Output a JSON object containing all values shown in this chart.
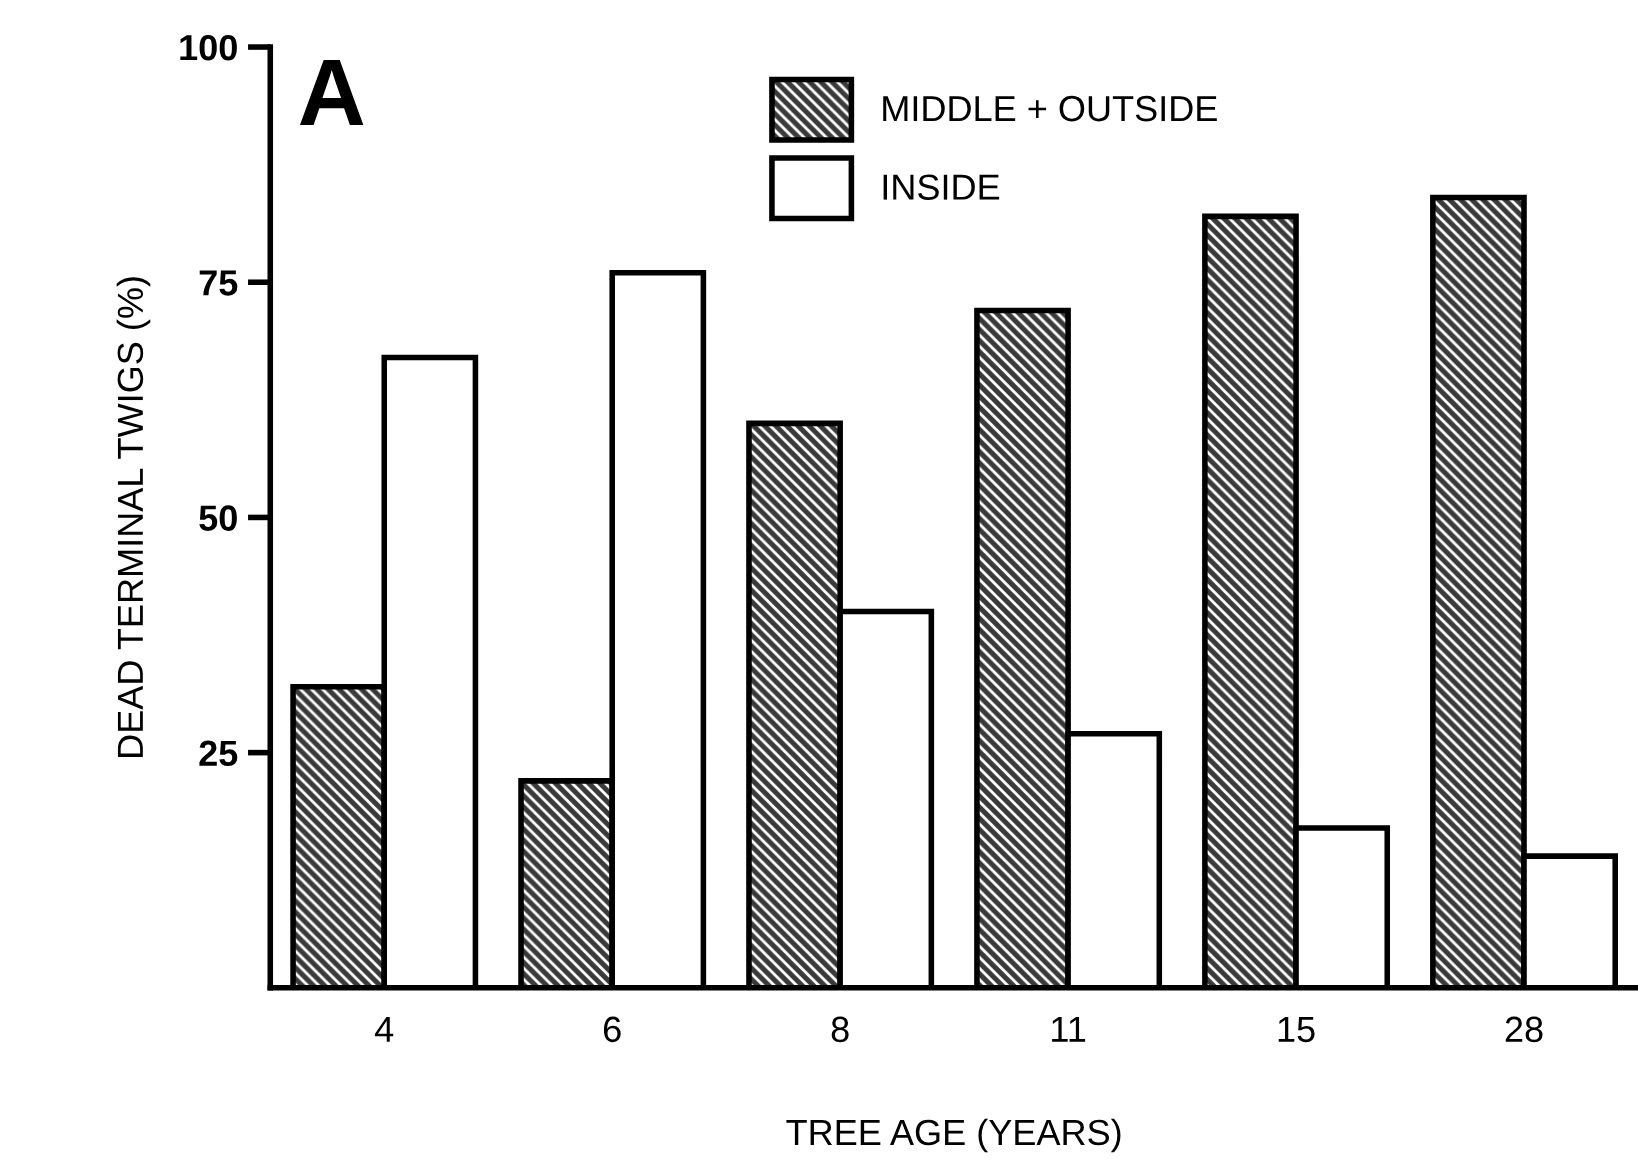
{
  "chart_data": {
    "type": "bar",
    "title": "A",
    "xlabel": "TREE AGE (YEARS)",
    "ylabel": "DEAD TERMINAL TWIGS (%)",
    "categories": [
      "4",
      "6",
      "8",
      "11",
      "15",
      "28"
    ],
    "series": [
      {
        "name": "MIDDLE + OUTSIDE",
        "color": "#3a3a3a",
        "values": [
          32,
          22,
          60,
          72,
          82,
          84
        ]
      },
      {
        "name": "INSIDE",
        "color": "#ffffff",
        "values": [
          67,
          76,
          40,
          27,
          17,
          14
        ]
      }
    ],
    "ylim": [
      0,
      100
    ],
    "yticks": [
      {
        "value": 25,
        "label": "25"
      },
      {
        "value": 50,
        "label": "50"
      },
      {
        "value": 75,
        "label": "75"
      },
      {
        "value": 100,
        "label": "100"
      }
    ],
    "grid": false,
    "legend": "top"
  }
}
